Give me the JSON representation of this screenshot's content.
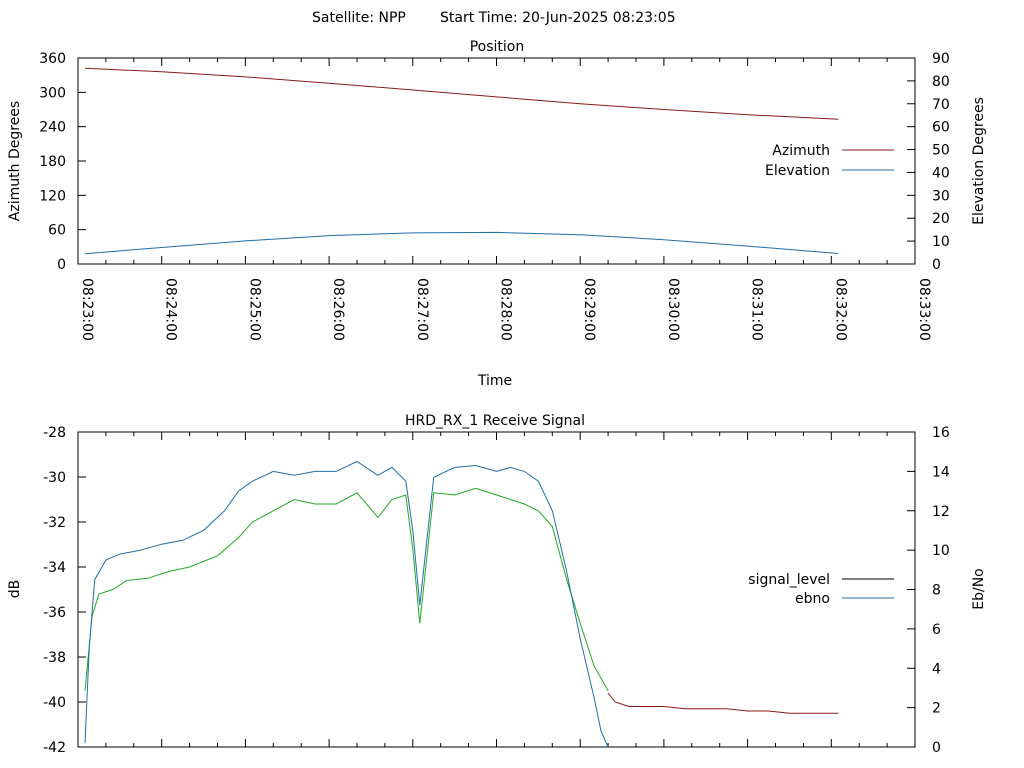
{
  "header": {
    "satellite_label": "Satellite: NPP",
    "start_label": "Start Time: 20-Jun-2025 08:23:05"
  },
  "chart_data": [
    {
      "type": "line",
      "title": "Position",
      "xlabel": "Time",
      "ylabel": "Azimuth Degrees",
      "y2label": "Elevation Degrees",
      "xlim": [
        "08:23:00",
        "08:33:00"
      ],
      "ylim": [
        0,
        360
      ],
      "y2lim": [
        0,
        90
      ],
      "x_ticks": [
        "08:23:00",
        "08:24:00",
        "08:25:00",
        "08:26:00",
        "08:27:00",
        "08:28:00",
        "08:29:00",
        "08:30:00",
        "08:31:00",
        "08:32:00",
        "08:33:00"
      ],
      "y_ticks": [
        "0",
        "60",
        "120",
        "180",
        "240",
        "300",
        "360"
      ],
      "y2_ticks": [
        "0",
        "10",
        "20",
        "30",
        "40",
        "50",
        "60",
        "70",
        "80",
        "90"
      ],
      "legend_position": "right",
      "series": [
        {
          "name": "Azimuth",
          "axis": "left",
          "color": "#8b1a1a",
          "x": [
            "08:23:05",
            "08:24:00",
            "08:25:00",
            "08:26:00",
            "08:27:00",
            "08:28:00",
            "08:29:00",
            "08:30:00",
            "08:31:00",
            "08:32:05"
          ],
          "y": [
            342,
            336,
            327,
            316,
            304,
            292,
            280,
            270,
            261,
            253
          ]
        },
        {
          "name": "Elevation",
          "axis": "right",
          "color": "#1f6fa8",
          "x": [
            "08:23:05",
            "08:24:00",
            "08:25:00",
            "08:26:00",
            "08:27:00",
            "08:28:00",
            "08:29:00",
            "08:30:00",
            "08:31:00",
            "08:32:05"
          ],
          "y": [
            4.5,
            7.2,
            10.1,
            12.4,
            13.6,
            13.8,
            12.8,
            10.6,
            7.8,
            4.6
          ]
        }
      ]
    },
    {
      "type": "line",
      "title": "HRD_RX_1 Receive Signal",
      "xlabel": "",
      "ylabel": "dB",
      "y2label": "Eb/No",
      "xlim": [
        "08:23:00",
        "08:33:00"
      ],
      "ylim": [
        -42,
        -28
      ],
      "y2lim": [
        0,
        16
      ],
      "y_ticks": [
        "-28",
        "-30",
        "-32",
        "-34",
        "-36",
        "-38",
        "-40",
        "-42"
      ],
      "y2_ticks": [
        "0",
        "2",
        "4",
        "6",
        "8",
        "10",
        "12",
        "14",
        "16"
      ],
      "legend_position": "right",
      "series": [
        {
          "name": "signal_level",
          "axis": "left",
          "color": "#000000",
          "segments": [
            {
              "color": "#22aa22",
              "x": [
                "08:23:05",
                "08:23:10",
                "08:23:15",
                "08:23:25",
                "08:23:35",
                "08:23:50",
                "08:24:05",
                "08:24:20",
                "08:24:40",
                "08:24:55",
                "08:25:05",
                "08:25:20",
                "08:25:35",
                "08:25:50",
                "08:26:05",
                "08:26:20",
                "08:26:35",
                "08:26:45",
                "08:26:55",
                "08:27:00",
                "08:27:05",
                "08:27:15",
                "08:27:30",
                "08:27:45",
                "08:28:00",
                "08:28:10",
                "08:28:20",
                "08:28:30",
                "08:28:40",
                "08:28:50",
                "08:29:00",
                "08:29:10",
                "08:29:20"
              ],
              "y": [
                -39.5,
                -36.2,
                -35.2,
                -35.0,
                -34.6,
                -34.5,
                -34.2,
                -34.0,
                -33.5,
                -32.7,
                -32.0,
                -31.5,
                -31.0,
                -31.2,
                -31.2,
                -30.7,
                -31.8,
                -31.0,
                -30.8,
                -33.2,
                -36.5,
                -30.7,
                -30.8,
                -30.5,
                -30.8,
                -31.0,
                -31.2,
                -31.5,
                -32.2,
                -34.5,
                -36.5,
                -38.4,
                -39.5
              ]
            },
            {
              "color": "#8b1a1a",
              "x": [
                "08:29:20",
                "08:29:25",
                "08:29:35",
                "08:29:45",
                "08:30:00",
                "08:30:15",
                "08:30:30",
                "08:30:45",
                "08:31:00",
                "08:31:15",
                "08:31:30",
                "08:31:45",
                "08:32:05"
              ],
              "y": [
                -39.6,
                -40.0,
                -40.2,
                -40.2,
                -40.2,
                -40.3,
                -40.3,
                -40.3,
                -40.4,
                -40.4,
                -40.5,
                -40.5,
                -40.5
              ]
            }
          ]
        },
        {
          "name": "ebno",
          "axis": "right",
          "color": "#1f6fa8",
          "x": [
            "08:23:05",
            "08:23:08",
            "08:23:12",
            "08:23:20",
            "08:23:30",
            "08:23:45",
            "08:24:00",
            "08:24:15",
            "08:24:30",
            "08:24:45",
            "08:24:55",
            "08:25:05",
            "08:25:20",
            "08:25:35",
            "08:25:50",
            "08:26:05",
            "08:26:20",
            "08:26:35",
            "08:26:45",
            "08:26:55",
            "08:27:00",
            "08:27:05",
            "08:27:15",
            "08:27:30",
            "08:27:45",
            "08:28:00",
            "08:28:10",
            "08:28:20",
            "08:28:30",
            "08:28:40",
            "08:28:50",
            "08:29:00",
            "08:29:10",
            "08:29:15",
            "08:29:20"
          ],
          "y": [
            0.2,
            5.0,
            8.5,
            9.5,
            9.8,
            10.0,
            10.3,
            10.5,
            11.0,
            12.0,
            13.0,
            13.5,
            14.0,
            13.8,
            14.0,
            14.0,
            14.5,
            13.8,
            14.2,
            13.5,
            11.0,
            7.2,
            13.7,
            14.2,
            14.3,
            14.0,
            14.2,
            14.0,
            13.5,
            12.0,
            9.0,
            5.5,
            2.5,
            0.8,
            0.0
          ]
        }
      ]
    }
  ]
}
